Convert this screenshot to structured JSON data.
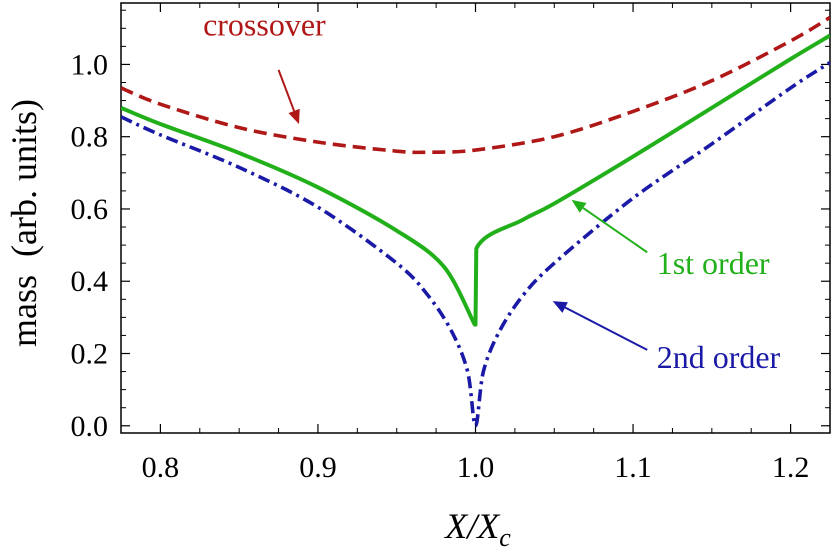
{
  "chart_data": {
    "type": "line",
    "title": "",
    "xlabel": "X/X_c",
    "ylabel": "mass  (arb. units)",
    "xlim": [
      0.775,
      1.225
    ],
    "ylim": [
      -0.02,
      1.17
    ],
    "x_ticks": [
      0.8,
      0.9,
      1.0,
      1.1,
      1.2
    ],
    "x_tick_labels": [
      "0.8",
      "0.9",
      "1.0",
      "1.1",
      "1.2"
    ],
    "y_ticks": [
      0.0,
      0.2,
      0.4,
      0.6,
      0.8,
      1.0
    ],
    "y_tick_labels": [
      "0.0",
      "0.2",
      "0.4",
      "0.6",
      "0.8",
      "1.0"
    ],
    "grid": false,
    "legend": "none",
    "series": [
      {
        "name": "crossover",
        "color": "#b01818",
        "dash": "dashed",
        "x": [
          0.775,
          0.8,
          0.85,
          0.9,
          0.95,
          0.97,
          1.0,
          1.05,
          1.1,
          1.15,
          1.2,
          1.225
        ],
        "y": [
          0.935,
          0.89,
          0.825,
          0.785,
          0.76,
          0.757,
          0.763,
          0.8,
          0.87,
          0.955,
          1.065,
          1.13
        ]
      },
      {
        "name": "1st order",
        "color": "#22b01a",
        "dash": "solid",
        "x": [
          0.775,
          0.8,
          0.85,
          0.9,
          0.95,
          0.98,
          0.9995,
          1.0,
          1.0005,
          1.03,
          1.05,
          1.1,
          1.15,
          1.2,
          1.225
        ],
        "y": [
          0.88,
          0.835,
          0.755,
          0.66,
          0.54,
          0.44,
          0.28,
          0.28,
          0.49,
          0.57,
          0.615,
          0.745,
          0.88,
          1.015,
          1.08
        ]
      },
      {
        "name": "2nd order",
        "color": "#1a1aa6",
        "dash": "dashdot",
        "x": [
          0.775,
          0.8,
          0.85,
          0.9,
          0.95,
          0.97,
          0.985,
          0.995,
          1.0,
          1.005,
          1.015,
          1.03,
          1.05,
          1.1,
          1.15,
          1.2,
          1.225
        ],
        "y": [
          0.855,
          0.805,
          0.715,
          0.605,
          0.45,
          0.36,
          0.26,
          0.15,
          0.0,
          0.15,
          0.26,
          0.36,
          0.45,
          0.63,
          0.78,
          0.935,
          1.005
        ]
      }
    ],
    "annotations": [
      {
        "text": "crossover",
        "color": "#b01818",
        "tx": 0.866,
        "ty": 1.08,
        "ax": 0.875,
        "ay": 0.985,
        "hx": 0.888,
        "hy": 0.835
      },
      {
        "text": "1st order",
        "color": "#22b01a",
        "tx": 1.115,
        "ty": 0.42,
        "ax": 1.109,
        "ay": 0.48,
        "hx": 1.061,
        "hy": 0.625
      },
      {
        "text": "2nd order",
        "color": "#1a1aa6",
        "tx": 1.115,
        "ty": 0.16,
        "ax": 1.109,
        "ay": 0.21,
        "hx": 1.049,
        "hy": 0.345
      }
    ]
  }
}
